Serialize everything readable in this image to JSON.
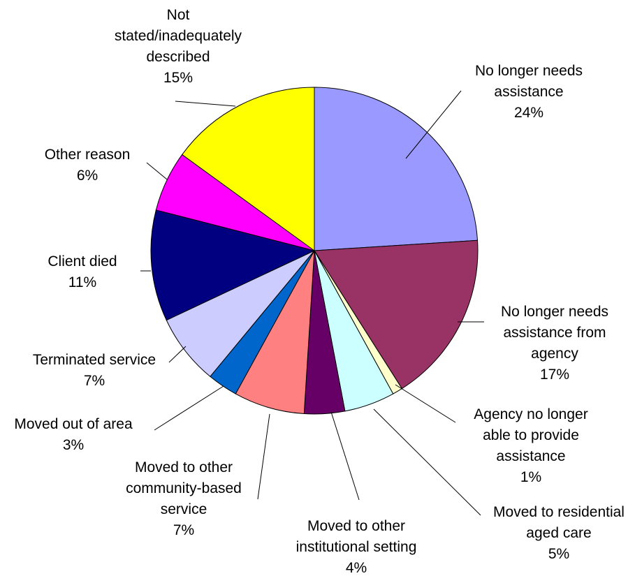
{
  "chart_data": {
    "type": "pie",
    "title": "",
    "slices": [
      {
        "label": "No longer needs assistance",
        "value": 24,
        "percent_label": "24%",
        "color": "#9999FF"
      },
      {
        "label": "No longer needs assistance from agency",
        "value": 17,
        "percent_label": "17%",
        "color": "#993366"
      },
      {
        "label": "Agency no longer able to provide assistance",
        "value": 1,
        "percent_label": "1%",
        "color": "#FFFFCC"
      },
      {
        "label": "Moved to residential aged care",
        "value": 5,
        "percent_label": "5%",
        "color": "#CCFFFF"
      },
      {
        "label": "Moved to other institutional setting",
        "value": 4,
        "percent_label": "4%",
        "color": "#660066"
      },
      {
        "label": "Moved to other community-based service",
        "value": 7,
        "percent_label": "7%",
        "color": "#FF8080"
      },
      {
        "label": "Moved out of area",
        "value": 3,
        "percent_label": "3%",
        "color": "#0066CC"
      },
      {
        "label": "Terminated service",
        "value": 7,
        "percent_label": "7%",
        "color": "#CCCCFF"
      },
      {
        "label": "Client died",
        "value": 11,
        "percent_label": "11%",
        "color": "#000080"
      },
      {
        "label": "Other reason",
        "value": 6,
        "percent_label": "6%",
        "color": "#FF00FF"
      },
      {
        "label": "Not stated/inadequately described",
        "value": 15,
        "percent_label": "15%",
        "color": "#FFFF00"
      }
    ],
    "label_lines": [
      [
        "No longer needs",
        "assistance",
        "24%"
      ],
      [
        "No longer needs",
        "assistance from",
        "agency",
        "17%"
      ],
      [
        "Agency no longer",
        "able to provide",
        "assistance",
        "1%"
      ],
      [
        "Moved to residential",
        "aged care",
        "5%"
      ],
      [
        "Moved to other",
        "institutional setting",
        "4%"
      ],
      [
        "Moved to other",
        "community-based",
        "service",
        "7%"
      ],
      [
        "Moved out of area",
        "3%"
      ],
      [
        "Terminated service",
        "7%"
      ],
      [
        "Client died",
        "11%"
      ],
      [
        "Other reason",
        "6%"
      ],
      [
        "Not",
        "stated/inadequately",
        "described",
        "15%"
      ]
    ],
    "legend": "none"
  }
}
